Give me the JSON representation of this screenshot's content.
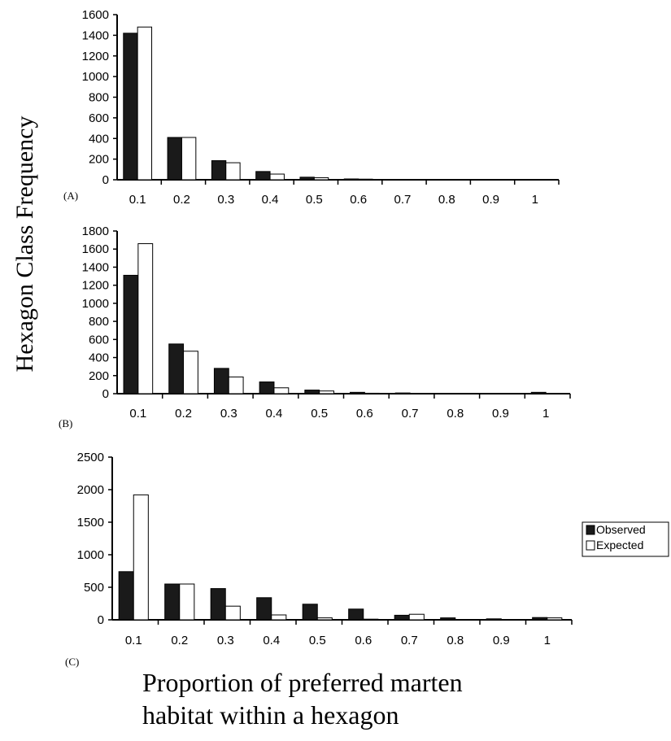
{
  "figure": {
    "ylabel": "Hexagon Class Frequency",
    "xlabel_lines": [
      "Proportion of preferred marten",
      "habitat within a hexagon"
    ],
    "legend": {
      "items": [
        {
          "label": "Observed",
          "color": "#1a1a1a"
        },
        {
          "label": "Expected",
          "color": "#ffffff"
        }
      ]
    }
  },
  "chart_data": [
    {
      "type": "bar",
      "panel_label": "(A)",
      "categories": [
        "0.1",
        "0.2",
        "0.3",
        "0.4",
        "0.5",
        "0.6",
        "0.7",
        "0.8",
        "0.9",
        "1"
      ],
      "series": [
        {
          "name": "Observed",
          "values": [
            1420,
            410,
            185,
            80,
            25,
            8,
            3,
            2,
            1,
            3
          ]
        },
        {
          "name": "Expected",
          "values": [
            1480,
            410,
            165,
            55,
            20,
            6,
            2,
            1,
            0,
            0
          ]
        }
      ],
      "ylim": [
        0,
        1600
      ],
      "yticks": [
        0,
        200,
        400,
        600,
        800,
        1000,
        1200,
        1400,
        1600
      ]
    },
    {
      "type": "bar",
      "panel_label": "(B)",
      "categories": [
        "0.1",
        "0.2",
        "0.3",
        "0.4",
        "0.5",
        "0.6",
        "0.7",
        "0.8",
        "0.9",
        "1"
      ],
      "series": [
        {
          "name": "Observed",
          "values": [
            1310,
            550,
            280,
            130,
            40,
            15,
            8,
            3,
            2,
            15
          ]
        },
        {
          "name": "Expected",
          "values": [
            1660,
            470,
            185,
            65,
            30,
            5,
            2,
            1,
            0,
            0
          ]
        }
      ],
      "ylim": [
        0,
        1800
      ],
      "yticks": [
        0,
        200,
        400,
        600,
        800,
        1000,
        1200,
        1400,
        1600,
        1800
      ]
    },
    {
      "type": "bar",
      "panel_label": "(C)",
      "categories": [
        "0.1",
        "0.2",
        "0.3",
        "0.4",
        "0.5",
        "0.6",
        "0.7",
        "0.8",
        "0.9",
        "1"
      ],
      "series": [
        {
          "name": "Observed",
          "values": [
            740,
            550,
            480,
            340,
            240,
            165,
            70,
            30,
            15,
            35
          ]
        },
        {
          "name": "Expected",
          "values": [
            1920,
            550,
            210,
            75,
            30,
            10,
            85,
            5,
            2,
            30
          ]
        }
      ],
      "ylim": [
        0,
        2500
      ],
      "yticks": [
        0,
        500,
        1000,
        1500,
        2000,
        2500
      ]
    }
  ]
}
